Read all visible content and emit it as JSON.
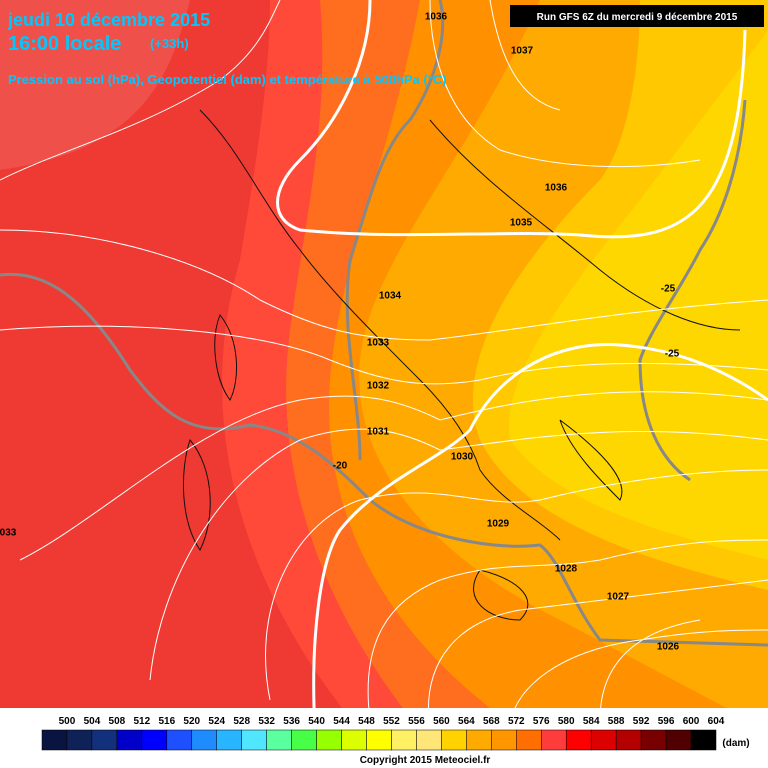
{
  "header": {
    "date": "jeudi 10 décembre 2015",
    "time": "16:00 locale",
    "lead": "(+33h)",
    "fields": "Pression au sol (hPa), Geopotentiel (dam) et température à 500hPa (°C)",
    "run": "Run GFS 6Z du mercredi 9 décembre 2015"
  },
  "isobar_labels": [
    "1036",
    "1037",
    "1036",
    "1035",
    "1034",
    "1033",
    "1032",
    "1031",
    "1030",
    "1029",
    "1028",
    "1027",
    "1026",
    "033"
  ],
  "temperature_labels": [
    "-20",
    "-25",
    "-25"
  ],
  "legend": {
    "levels": [
      500,
      504,
      508,
      512,
      516,
      520,
      524,
      528,
      532,
      536,
      540,
      544,
      548,
      552,
      556,
      560,
      564,
      568,
      572,
      576,
      580,
      584,
      588,
      592,
      596,
      600,
      604
    ],
    "colors": [
      "#0a1440",
      "#0f2258",
      "#13307c",
      "#0000c8",
      "#0000ff",
      "#1e50ff",
      "#1e8cff",
      "#28b4ff",
      "#50e6ff",
      "#5affa0",
      "#46ff46",
      "#96ff00",
      "#dcff00",
      "#ffff00",
      "#fff064",
      "#ffe678",
      "#ffd200",
      "#ffaa00",
      "#ff9600",
      "#ff6e00",
      "#ff3c3c",
      "#ff0000",
      "#dc0000",
      "#b40000",
      "#780000",
      "#500000",
      "#000000"
    ],
    "unit": "(dam)"
  },
  "footer": {
    "copyright": "Copyright 2015 Meteociel.fr"
  }
}
